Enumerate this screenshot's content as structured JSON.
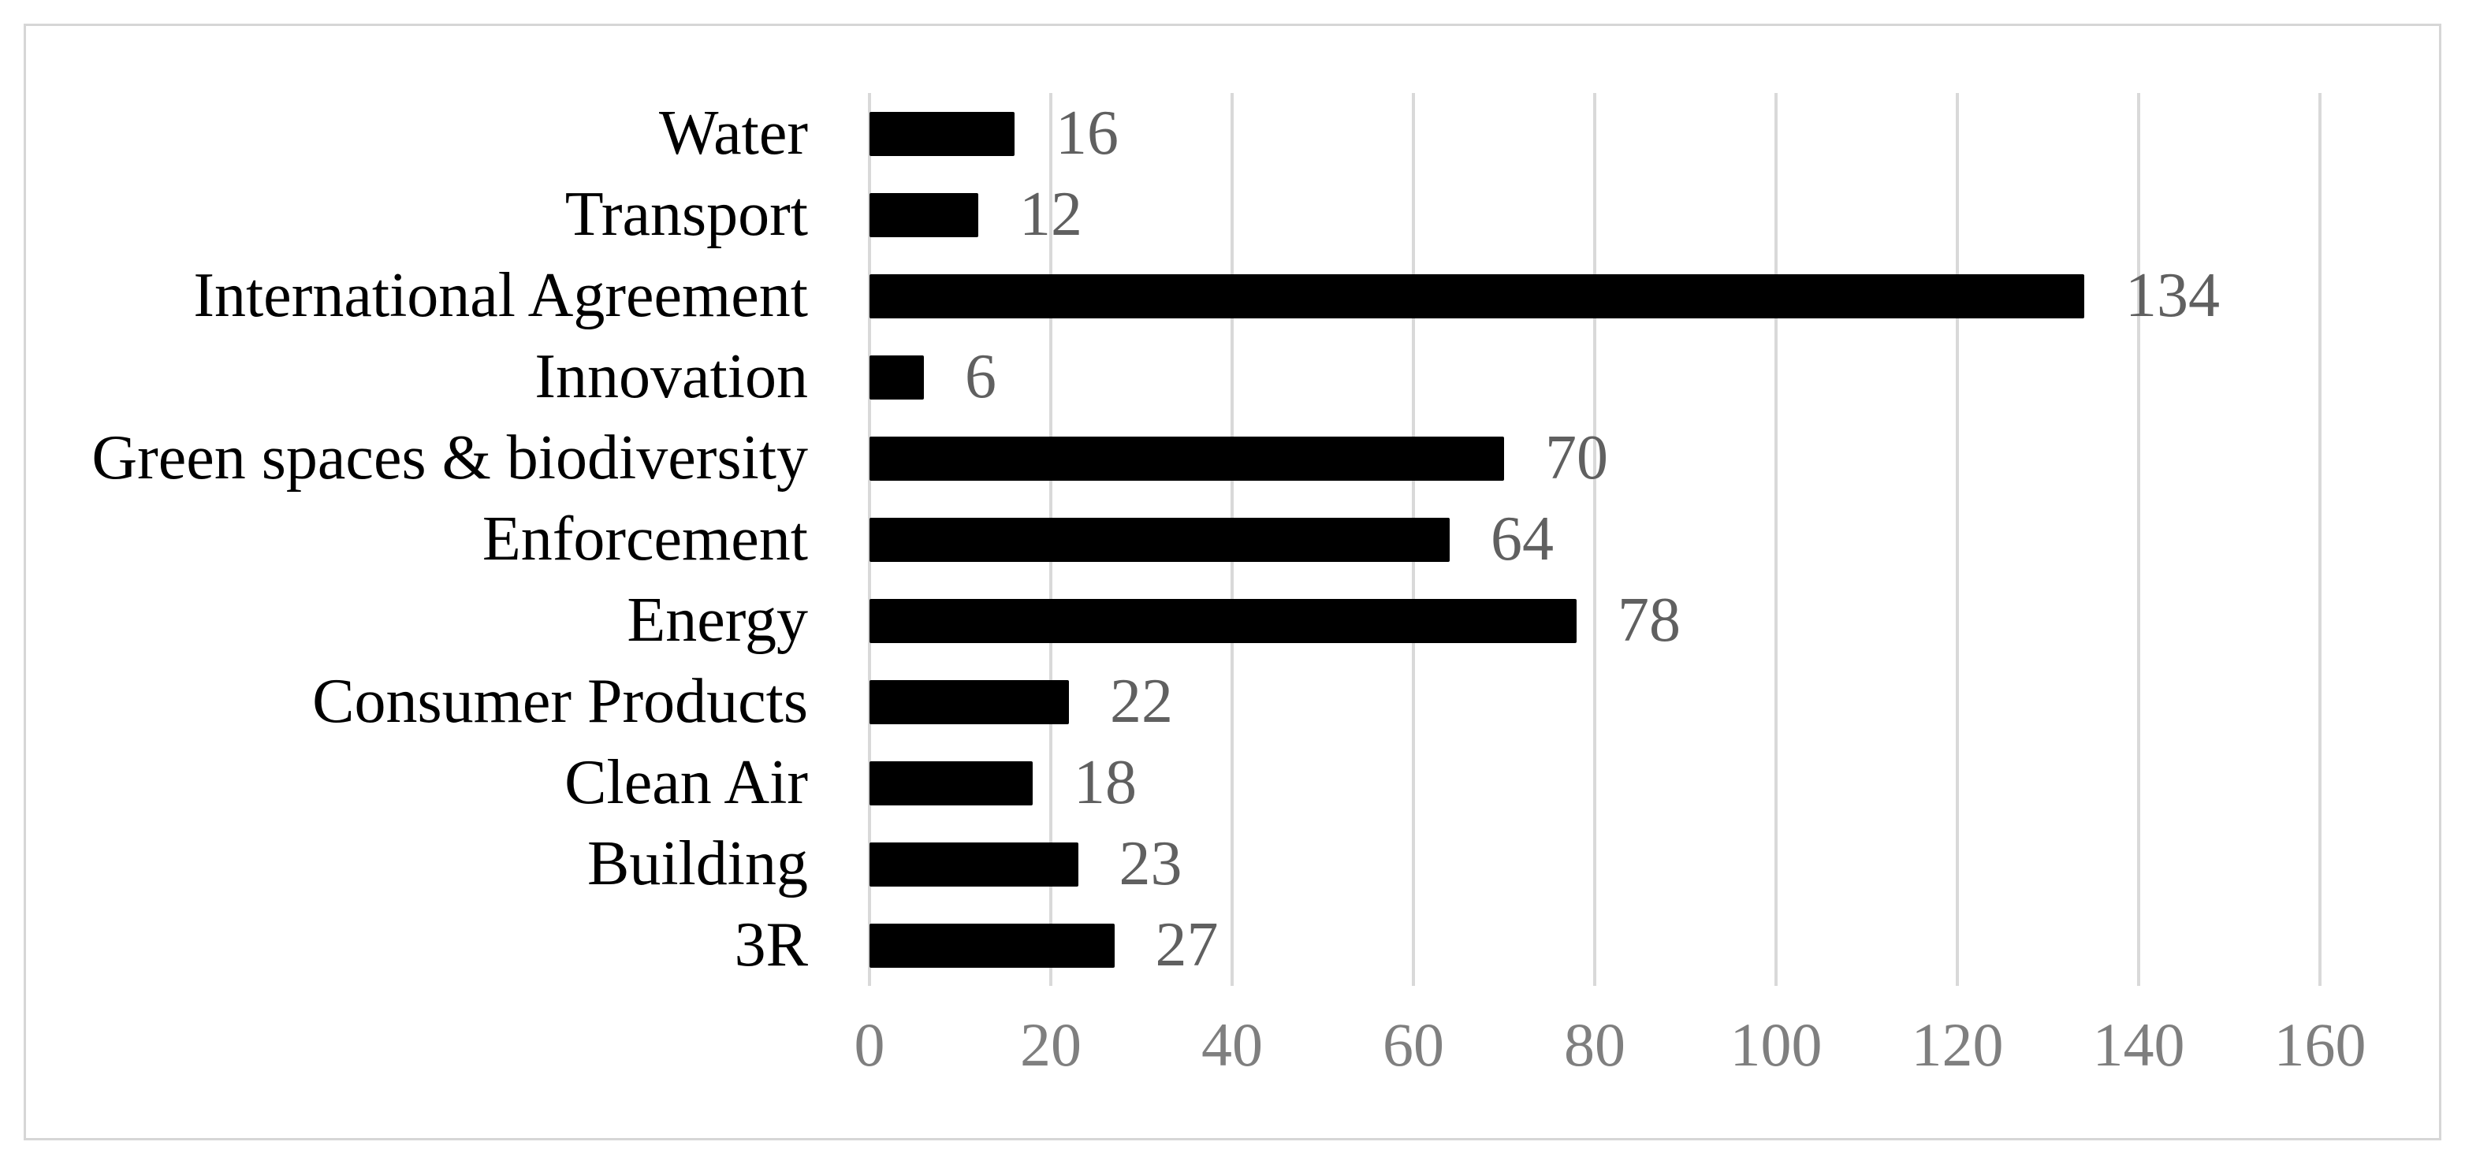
{
  "chart_data": {
    "type": "bar",
    "orientation": "horizontal",
    "title": "",
    "xlabel": "",
    "ylabel": "",
    "categories": [
      "Water",
      "Transport",
      "International Agreement",
      "Innovation",
      "Green spaces & biodiversity",
      "Enforcement",
      "Energy",
      "Consumer Products",
      "Clean Air",
      "Building",
      "3R"
    ],
    "values": [
      16,
      12,
      134,
      6,
      70,
      64,
      78,
      22,
      18,
      23,
      27
    ],
    "x_ticks": [
      "0",
      "20",
      "40",
      "60",
      "80",
      "100",
      "120",
      "140",
      "160"
    ],
    "xlim": [
      0,
      160
    ],
    "grid": "vertical-gridlines-on",
    "legend": "none",
    "colors": {
      "bar": "#000000",
      "category_label": "#000000",
      "value_label": "#606060",
      "tick_label": "#7f7f7f",
      "gridline": "#d9d9d9",
      "figure_border": "#d6d6d6",
      "background": "#ffffff"
    }
  }
}
